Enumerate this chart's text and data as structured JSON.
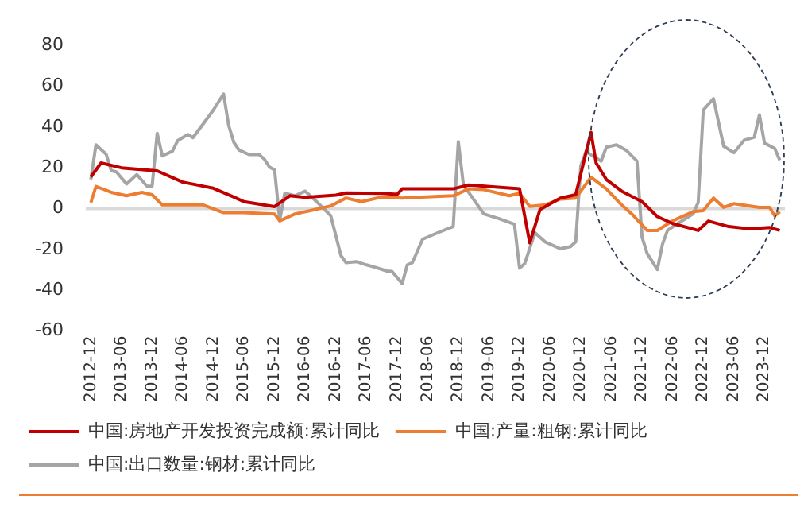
{
  "chart_data": {
    "type": "line",
    "xlim": [
      "2012-11",
      "2024-04"
    ],
    "xticks": [
      "2012-12",
      "2013-06",
      "2013-12",
      "2014-06",
      "2014-12",
      "2015-06",
      "2015-12",
      "2016-06",
      "2016-12",
      "2017-06",
      "2017-12",
      "2018-06",
      "2018-12",
      "2019-06",
      "2019-12",
      "2020-06",
      "2020-12",
      "2021-06",
      "2021-12",
      "2022-06",
      "2022-12",
      "2023-06",
      "2023-12"
    ],
    "ylim": [
      -60,
      80
    ],
    "yticks": [
      -60,
      -40,
      -20,
      0,
      20,
      40,
      60,
      80
    ],
    "grid": false,
    "legend": "bottom",
    "ref_lines": [
      {
        "axis": "y",
        "value": 0,
        "color": "#d9d9d9"
      }
    ],
    "marker": "none",
    "line_style": "solid",
    "series": [
      {
        "name": "中国:房地产开发投资完成额:累计同比",
        "color": "#c00000",
        "x": [
          "2012-12",
          "2013-02",
          "2013-06",
          "2014-01",
          "2014-06",
          "2014-12",
          "2015-04",
          "2015-06",
          "2015-12",
          "2016-03",
          "2016-06",
          "2016-12",
          "2017-02",
          "2017-09",
          "2017-12",
          "2018-01",
          "2018-11",
          "2019-02",
          "2019-12",
          "2020-02",
          "2020-04",
          "2020-08",
          "2020-11",
          "2021-02",
          "2021-03",
          "2021-05",
          "2021-08",
          "2021-12",
          "2022-03",
          "2022-06",
          "2022-11",
          "2023-01",
          "2023-05",
          "2023-09",
          "2024-01",
          "2024-03"
        ],
        "values": [
          15.6,
          22.4,
          20,
          18.5,
          13,
          10,
          5.7,
          3.4,
          1,
          6.3,
          5.5,
          6.6,
          7.7,
          7.5,
          7,
          9.7,
          9.7,
          11.6,
          9.7,
          -16.8,
          -0.5,
          5.2,
          6.8,
          37.4,
          22.4,
          14.3,
          8.6,
          3.4,
          -3.9,
          -7.3,
          -10.7,
          -6.1,
          -8.8,
          -9.9,
          -9.3,
          -10.7
        ]
      },
      {
        "name": "中国:产量:粗钢:累计同比",
        "color": "#ed7d31",
        "x": [
          "2012-12",
          "2013-01",
          "2013-04",
          "2013-07",
          "2013-10",
          "2013-12",
          "2014-02",
          "2014-10",
          "2015-02",
          "2015-06",
          "2015-12",
          "2016-01",
          "2016-04",
          "2016-07",
          "2016-11",
          "2017-02",
          "2017-05",
          "2017-09",
          "2018-01",
          "2018-11",
          "2019-02",
          "2019-05",
          "2019-10",
          "2019-12",
          "2020-02",
          "2020-05",
          "2020-08",
          "2020-11",
          "2021-02",
          "2021-05",
          "2021-08",
          "2021-10",
          "2022-01",
          "2022-03",
          "2022-06",
          "2022-10",
          "2022-12",
          "2023-02",
          "2023-04",
          "2023-06",
          "2023-11",
          "2024-01",
          "2024-02",
          "2024-03"
        ],
        "values": [
          3,
          10.9,
          8,
          6.3,
          8,
          6.8,
          1.8,
          1.8,
          -2,
          -2,
          -2.6,
          -6,
          -2.6,
          -1,
          1.3,
          5.2,
          3.4,
          5.7,
          5.2,
          6.3,
          9.7,
          9.3,
          6.3,
          7.5,
          1.1,
          1.8,
          4.7,
          5.2,
          15.4,
          9.7,
          1.8,
          -2.6,
          -10.7,
          -10.7,
          -6,
          -1.5,
          -1,
          5.2,
          0.6,
          2.4,
          0.6,
          0.6,
          -3.5,
          -1.5
        ]
      },
      {
        "name": "中国:出口数量:钢材:累计同比",
        "color": "#a5a5a5",
        "x": [
          "2012-12",
          "2013-01",
          "2013-03",
          "2013-04",
          "2013-05",
          "2013-07",
          "2013-09",
          "2013-11",
          "2013-12",
          "2014-01",
          "2014-02",
          "2014-04",
          "2014-05",
          "2014-07",
          "2014-08",
          "2014-10",
          "2014-12",
          "2015-02",
          "2015-03",
          "2015-04",
          "2015-05",
          "2015-07",
          "2015-09",
          "2015-10",
          "2015-11",
          "2015-12",
          "2016-01",
          "2016-02",
          "2016-04",
          "2016-06",
          "2016-08",
          "2016-11",
          "2017-01",
          "2017-02",
          "2017-04",
          "2017-06",
          "2017-08",
          "2017-10",
          "2017-11",
          "2018-01",
          "2018-02",
          "2018-03",
          "2018-05",
          "2018-08",
          "2018-11",
          "2018-12",
          "2019-01",
          "2019-05",
          "2019-08",
          "2019-11",
          "2019-12",
          "2020-01",
          "2020-03",
          "2020-05",
          "2020-08",
          "2020-10",
          "2020-11",
          "2020-12",
          "2021-01",
          "2021-04",
          "2021-05",
          "2021-07",
          "2021-09",
          "2021-11",
          "2021-12",
          "2022-01",
          "2022-03",
          "2022-04",
          "2022-05",
          "2022-07",
          "2022-10",
          "2022-11",
          "2022-12",
          "2023-02",
          "2023-04",
          "2023-06",
          "2023-08",
          "2023-10",
          "2023-11",
          "2023-12",
          "2024-02",
          "2024-03"
        ],
        "values": [
          14.3,
          31.3,
          26.7,
          18.6,
          18,
          12.1,
          16.7,
          11,
          11,
          36.9,
          25.8,
          28.2,
          33.3,
          36.3,
          34.8,
          41.5,
          48.3,
          56.2,
          40.8,
          32.6,
          28.8,
          26.5,
          26.5,
          24.2,
          20.4,
          19,
          -5.7,
          7.5,
          6.3,
          8.6,
          4,
          -3.4,
          -23,
          -26.5,
          -26,
          -27.6,
          -29,
          -30.6,
          -30.8,
          -36.7,
          -27.6,
          -26.5,
          -15,
          -11.8,
          -8.8,
          32.8,
          11.6,
          -2.6,
          -4.9,
          -7.7,
          -29.2,
          -27,
          -11.8,
          -16.3,
          -19.7,
          -18.6,
          -16.3,
          21.1,
          27.9,
          23.3,
          30.1,
          31.3,
          28.4,
          23.3,
          -14,
          -22,
          -29.9,
          -17.5,
          -10.7,
          -7.3,
          -2.6,
          3,
          48.3,
          53.9,
          30.6,
          27.4,
          33.5,
          35,
          46,
          32.1,
          29.5,
          23.7
        ]
      }
    ]
  }
}
